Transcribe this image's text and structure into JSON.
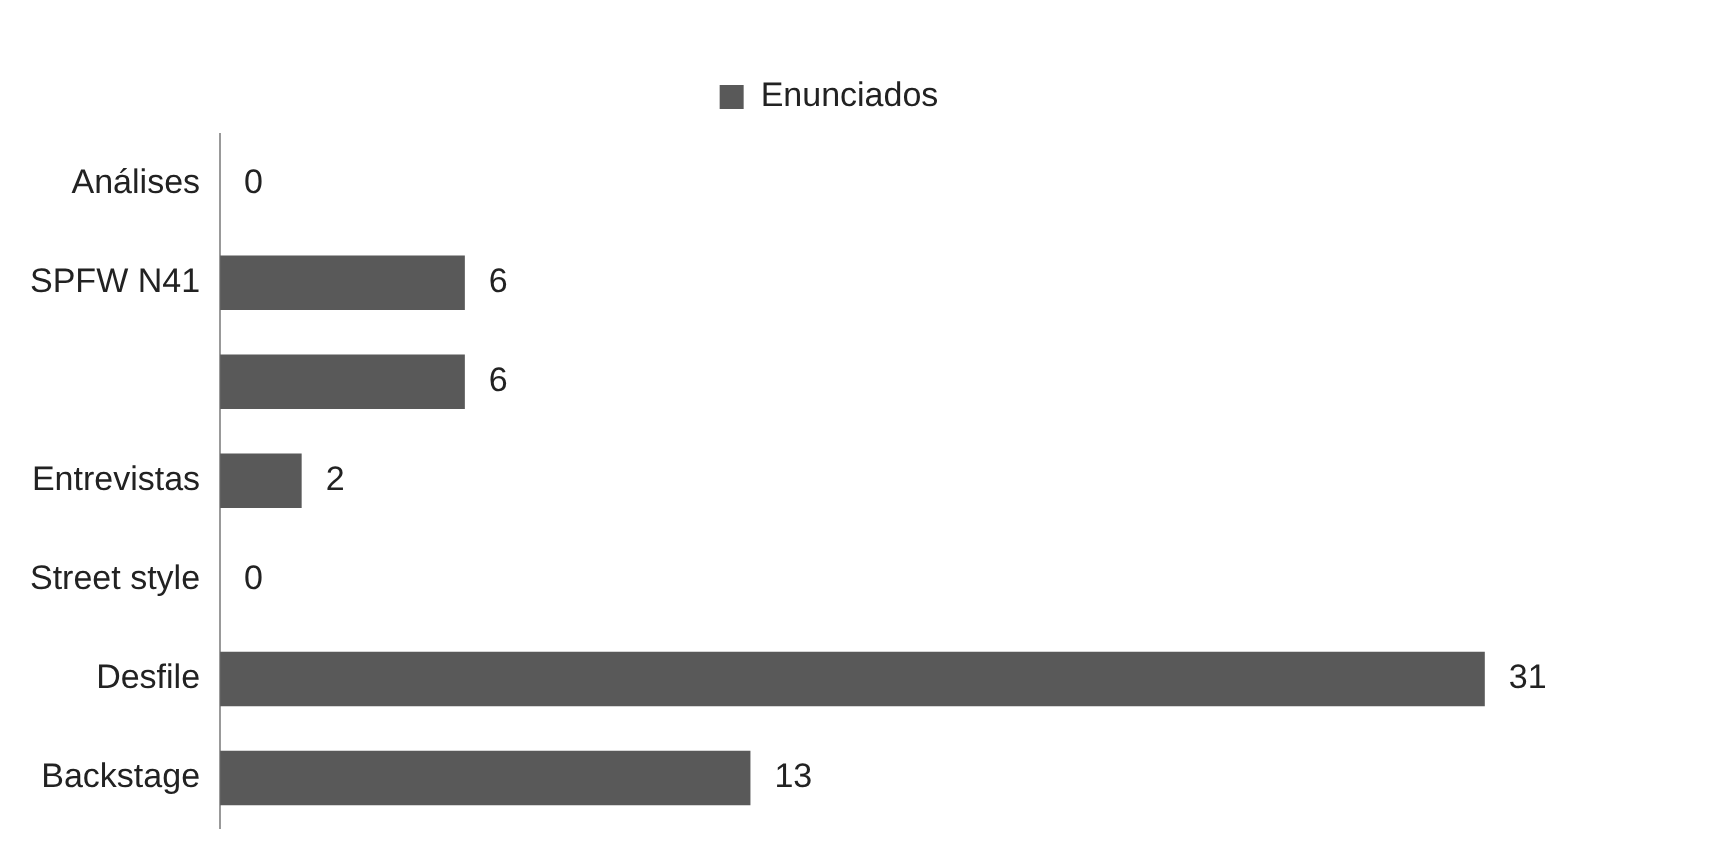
{
  "chart_data": {
    "type": "bar",
    "orientation": "horizontal",
    "categories": [
      "Análises",
      "SPFW N41",
      null,
      "Entrevistas",
      "Street style",
      "Desfile",
      "Backstage"
    ],
    "series": [
      {
        "name": "Enunciados",
        "color": "#595959",
        "values": [
          0,
          6,
          6,
          2,
          0,
          31,
          13
        ]
      }
    ],
    "data_labels": true,
    "legend": "top"
  }
}
